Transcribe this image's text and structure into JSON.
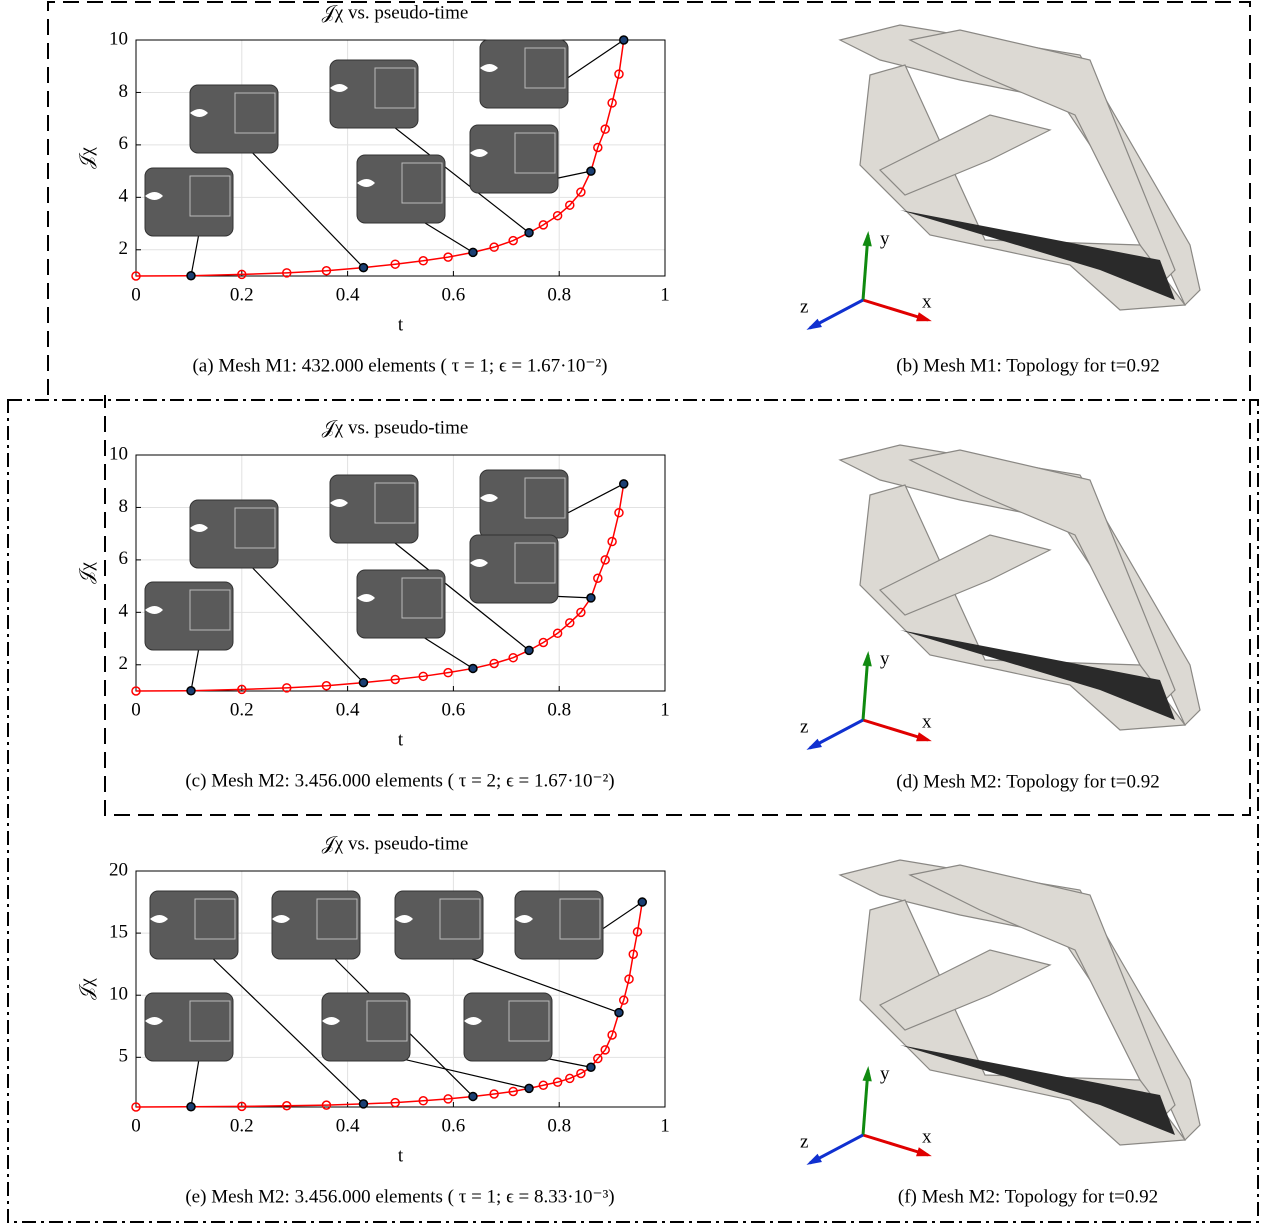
{
  "chart_data": [
    {
      "type": "line",
      "title": "𝒥χ vs. pseudo-time",
      "xlabel": "t",
      "ylabel": "𝒥χ",
      "caption": "(a) Mesh M1: 432.000 elements ( τ = 1; ϵ = 1.67·10⁻²)",
      "x": [
        0,
        0.104,
        0.2,
        0.285,
        0.36,
        0.43,
        0.49,
        0.543,
        0.59,
        0.637,
        0.677,
        0.713,
        0.743,
        0.77,
        0.797,
        0.82,
        0.841,
        0.86,
        0.873,
        0.887,
        0.9,
        0.913,
        0.922
      ],
      "values": [
        1,
        1.01,
        1.06,
        1.12,
        1.2,
        1.32,
        1.45,
        1.58,
        1.72,
        1.9,
        2.1,
        2.35,
        2.65,
        2.95,
        3.3,
        3.7,
        4.2,
        5.0,
        5.9,
        6.6,
        7.6,
        8.7,
        10.0
      ],
      "color": "#ff0000",
      "highlighted": [
        1,
        5,
        9,
        12,
        17,
        22
      ],
      "highlight_color": "#1b3f73",
      "xlim": [
        0,
        1
      ],
      "xticks": [
        0,
        0.2,
        0.4,
        0.6,
        0.8,
        1
      ],
      "ylim": [
        1,
        10
      ],
      "yticks": [
        2,
        4,
        6,
        8,
        10
      ],
      "grid": true
    },
    {
      "type": "line",
      "title": "𝒥χ vs. pseudo-time",
      "xlabel": "t",
      "ylabel": "𝒥χ",
      "caption": "(c) Mesh M2: 3.456.000 elements ( τ = 2; ϵ = 1.67·10⁻²)",
      "x": [
        0,
        0.104,
        0.2,
        0.285,
        0.36,
        0.43,
        0.49,
        0.543,
        0.59,
        0.637,
        0.677,
        0.713,
        0.743,
        0.77,
        0.797,
        0.82,
        0.841,
        0.86,
        0.873,
        0.887,
        0.9,
        0.913,
        0.922
      ],
      "values": [
        1,
        1.01,
        1.06,
        1.12,
        1.2,
        1.32,
        1.44,
        1.56,
        1.7,
        1.86,
        2.05,
        2.27,
        2.55,
        2.85,
        3.2,
        3.6,
        4.0,
        4.55,
        5.3,
        6.0,
        6.7,
        7.8,
        8.9
      ],
      "color": "#ff0000",
      "highlighted": [
        1,
        5,
        9,
        12,
        17,
        22
      ],
      "highlight_color": "#1b3f73",
      "xlim": [
        0,
        1
      ],
      "xticks": [
        0,
        0.2,
        0.4,
        0.6,
        0.8,
        1
      ],
      "ylim": [
        1,
        10
      ],
      "yticks": [
        2,
        4,
        6,
        8,
        10
      ],
      "grid": true
    },
    {
      "type": "line",
      "title": "𝒥χ vs. pseudo-time",
      "xlabel": "t",
      "ylabel": "𝒥χ",
      "caption": "(e) Mesh M2: 3.456.000 elements ( τ = 1; ϵ = 8.33·10⁻³)",
      "x": [
        0,
        0.104,
        0.2,
        0.285,
        0.36,
        0.43,
        0.49,
        0.543,
        0.59,
        0.637,
        0.677,
        0.713,
        0.743,
        0.77,
        0.797,
        0.82,
        0.841,
        0.86,
        0.873,
        0.887,
        0.9,
        0.913,
        0.922,
        0.932,
        0.94,
        0.948,
        0.957
      ],
      "values": [
        1,
        1.02,
        1.05,
        1.1,
        1.15,
        1.25,
        1.35,
        1.5,
        1.65,
        1.85,
        2.05,
        2.25,
        2.5,
        2.75,
        3.0,
        3.3,
        3.7,
        4.2,
        4.9,
        5.6,
        6.8,
        8.6,
        9.6,
        11.3,
        13.3,
        15.1,
        17.5
      ],
      "color": "#ff0000",
      "highlighted": [
        1,
        5,
        9,
        12,
        17,
        21,
        26
      ],
      "highlight_color": "#1b3f73",
      "xlim": [
        0,
        1
      ],
      "xticks": [
        0,
        0.2,
        0.4,
        0.6,
        0.8,
        1
      ],
      "ylim": [
        1,
        20
      ],
      "yticks": [
        5,
        10,
        15,
        20
      ],
      "grid": true
    }
  ],
  "renders": [
    {
      "caption": "(b) Mesh M1: Topology for t=0.92",
      "axis_labels": [
        "x",
        "y",
        "z"
      ]
    },
    {
      "caption": "(d) Mesh M2: Topology for t=0.92",
      "axis_labels": [
        "x",
        "y",
        "z"
      ]
    },
    {
      "caption": "(f) Mesh M2: Topology for t=0.92",
      "axis_labels": [
        "x",
        "y",
        "z"
      ]
    }
  ]
}
